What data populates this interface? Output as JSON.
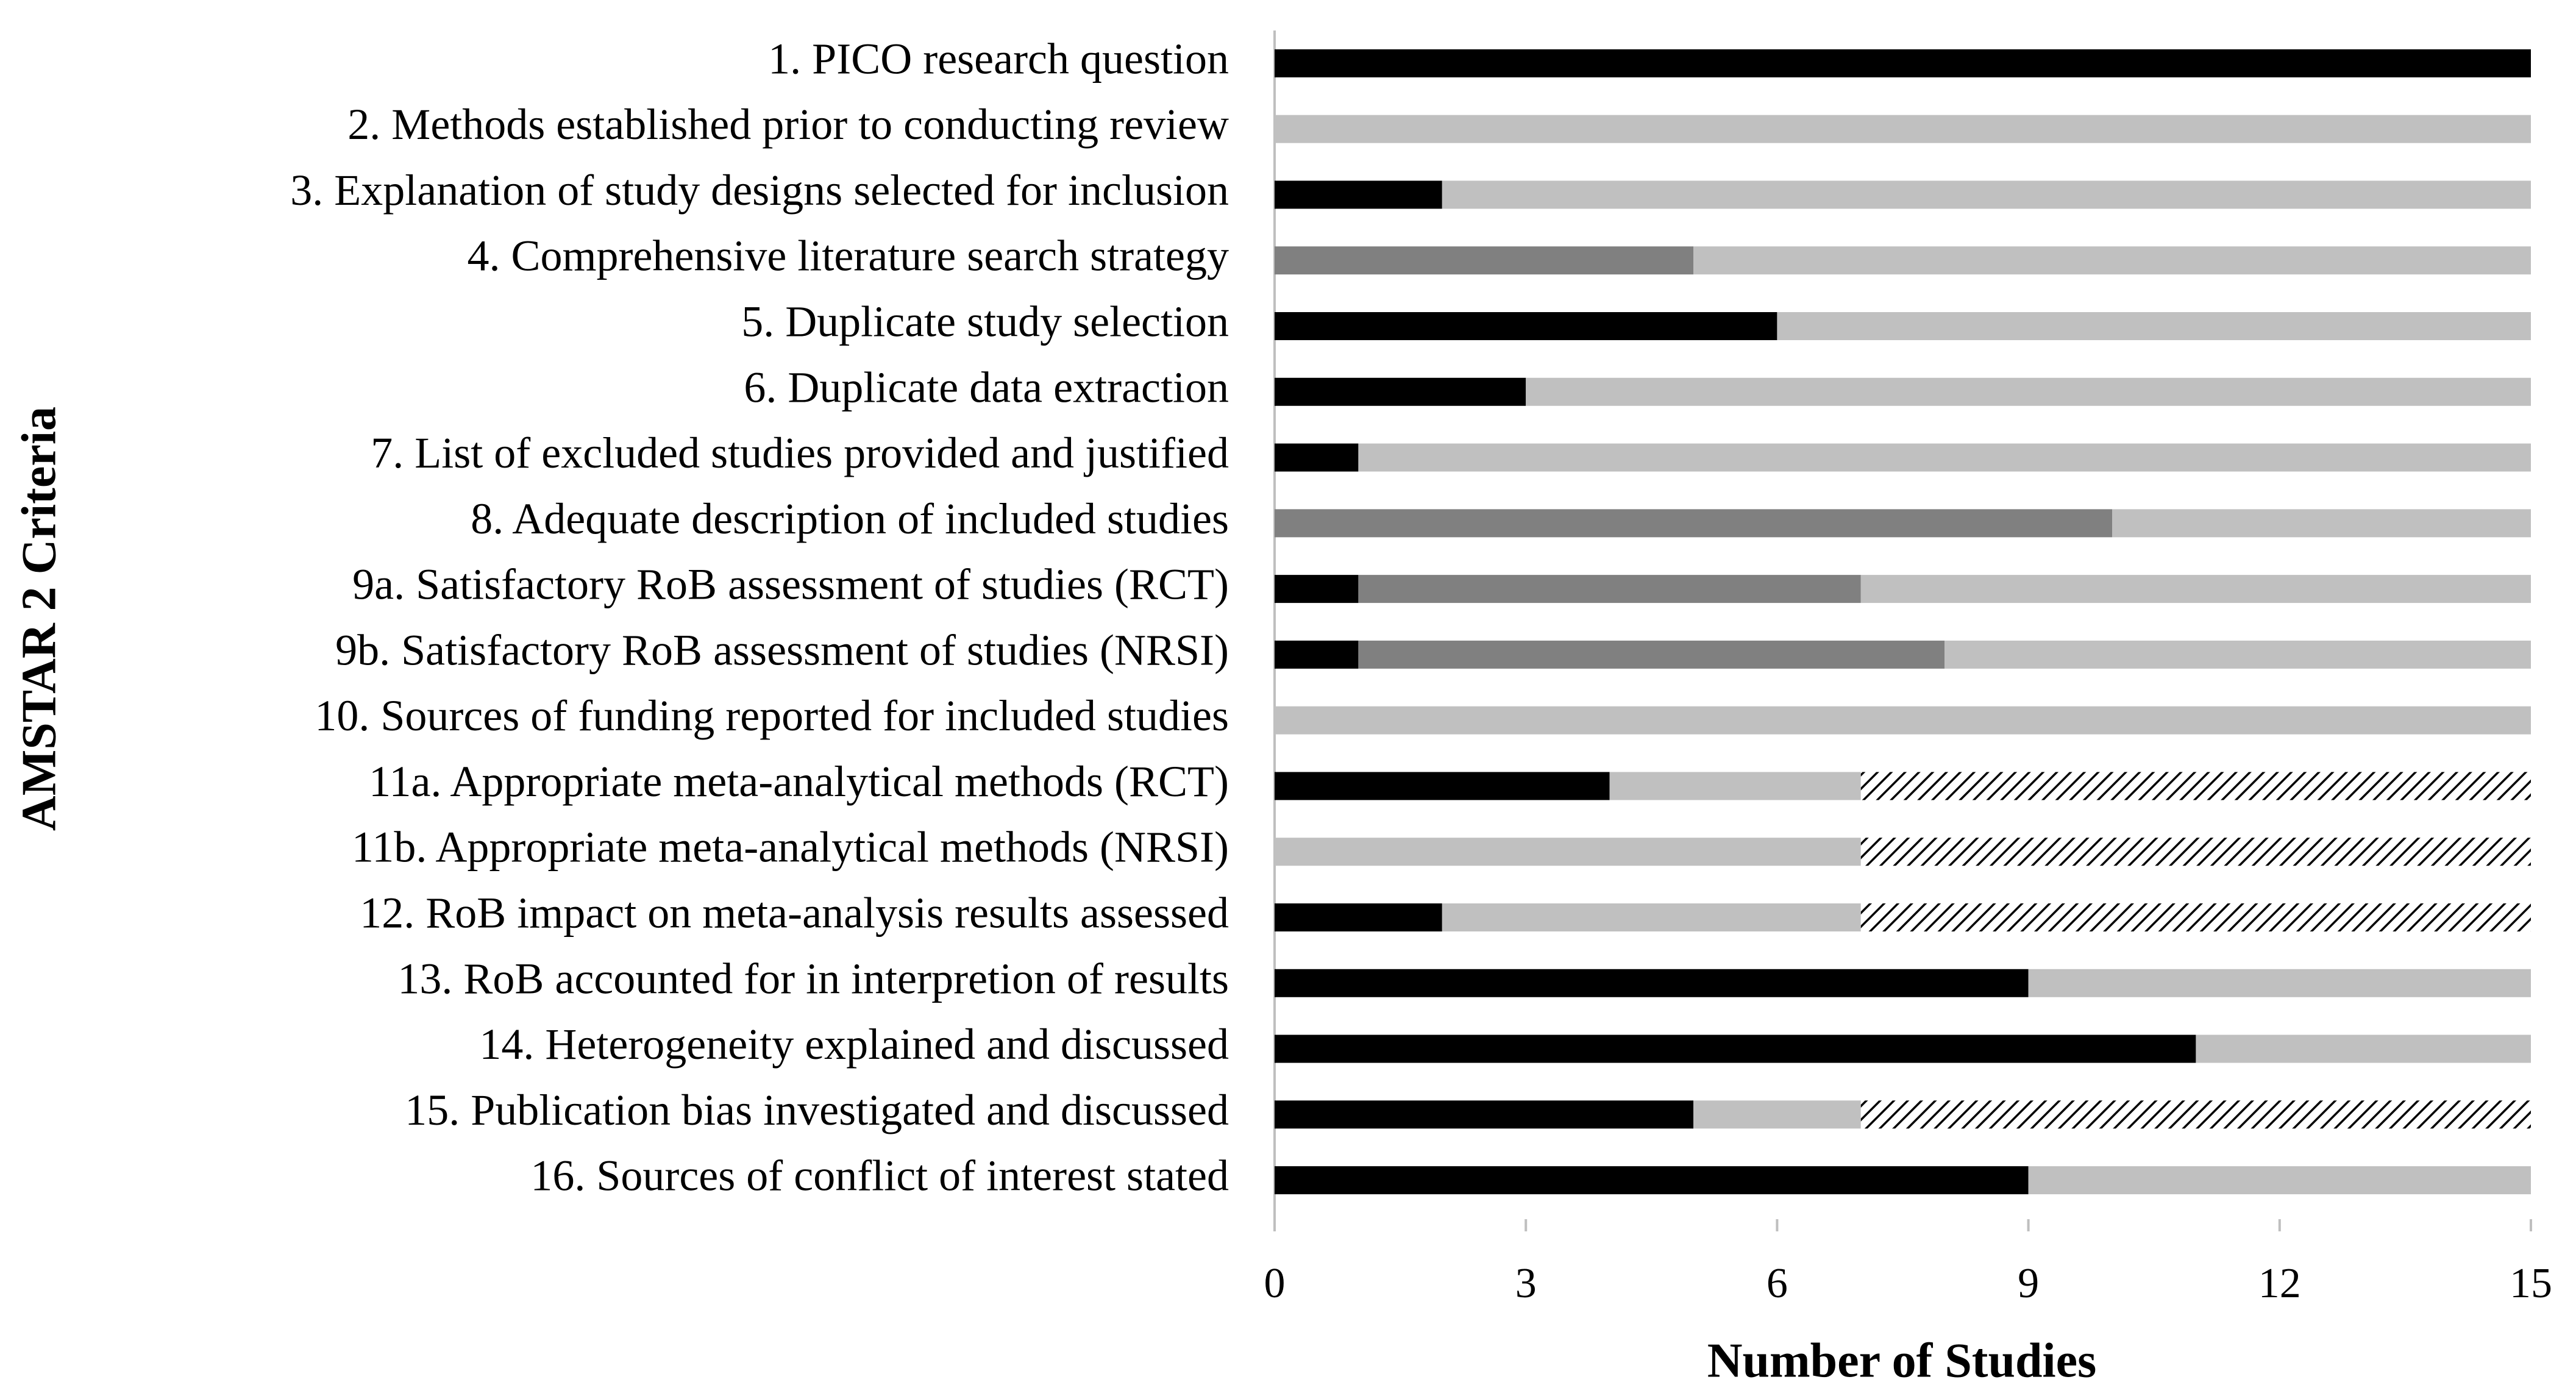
{
  "chart_data": {
    "type": "stacked_barh",
    "x_label": "Number of Studies",
    "y_label": "AMSTAR 2 Criteria",
    "categories": [
      "1. PICO research question",
      "2. Methods established prior to conducting review",
      "3. Explanation of study designs selected for inclusion",
      "4. Comprehensive literature search strategy",
      "5. Duplicate study selection",
      "6. Duplicate data extraction",
      "7. List of excluded studies provided and justified",
      "8. Adequate description of included studies",
      "9a. Satisfactory RoB assessment of studies (RCT)",
      "9b. Satisfactory RoB assessment of studies (NRSI)",
      "10. Sources of funding reported for included studies",
      "11a. Appropriate meta-analytical methods (RCT)",
      "11b. Appropriate meta-analytical methods (NRSI)",
      "12. RoB impact on meta-analysis results assessed",
      "13. RoB accounted for in interpretion of results",
      "14. Heterogeneity explained and discussed",
      "15. Publication bias investigated and discussed",
      "16. Sources of conflict of interest stated"
    ],
    "series": [
      {
        "color": "#000000",
        "values": [
          15,
          0,
          2,
          0,
          6,
          3,
          1,
          0,
          1,
          1,
          0,
          4,
          0,
          2,
          9,
          11,
          5,
          9
        ]
      },
      {
        "color": "#808080",
        "values": [
          0,
          0,
          0,
          5,
          0,
          0,
          0,
          10,
          6,
          7,
          0,
          0,
          0,
          0,
          0,
          0,
          0,
          0
        ]
      },
      {
        "color": "#c0c0c0",
        "values": [
          0,
          15,
          13,
          10,
          9,
          12,
          14,
          5,
          8,
          7,
          15,
          3,
          7,
          5,
          6,
          4,
          2,
          6
        ]
      },
      {
        "color": "#000000",
        "hatch": true,
        "values": [
          0,
          0,
          0,
          0,
          0,
          0,
          0,
          0,
          0,
          0,
          0,
          8,
          8,
          8,
          0,
          0,
          8,
          0
        ]
      }
    ],
    "xlim": [
      0,
      15
    ],
    "xticks": [
      0,
      3,
      6,
      9,
      12,
      15
    ],
    "grid": false
  }
}
